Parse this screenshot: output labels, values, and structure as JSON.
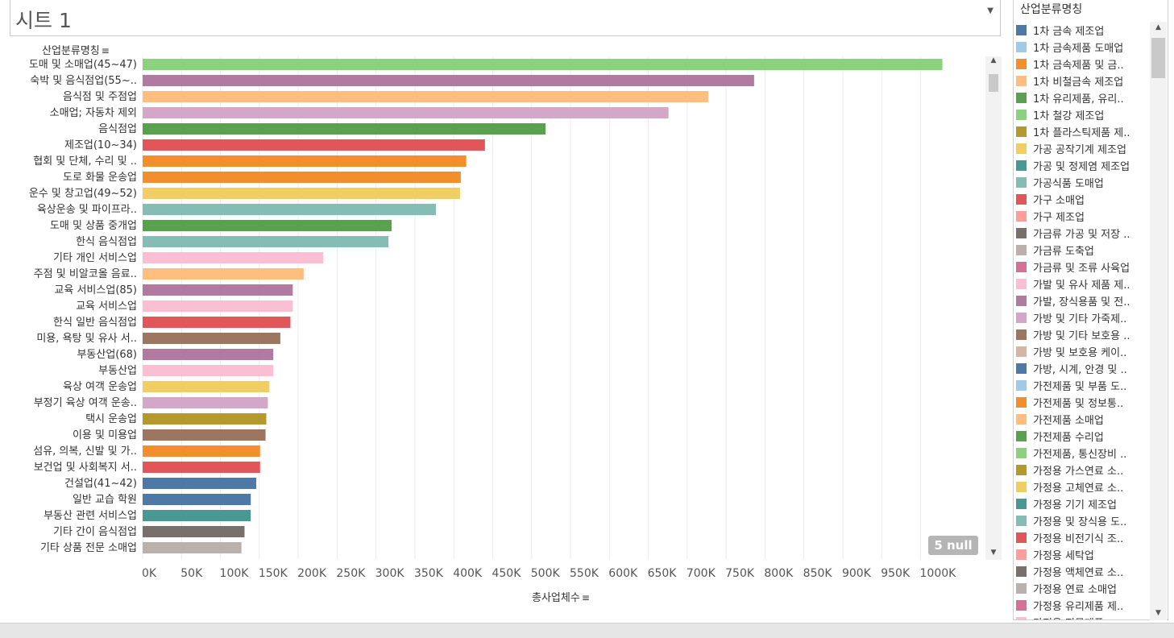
{
  "sheet": {
    "title": "시트 1",
    "dropdown_icon": "caret-down"
  },
  "legend": {
    "title": "산업분류명칭",
    "items": [
      {
        "label": "1차 금속 제조업",
        "color": "#4e79a7"
      },
      {
        "label": "1차 금속제품 도매업",
        "color": "#a0cbe8"
      },
      {
        "label": "1차 금속제품 및 금..",
        "color": "#f28e2b"
      },
      {
        "label": "1차 비철금속 제조업",
        "color": "#ffbe7d"
      },
      {
        "label": "1차 유리제품, 유리..",
        "color": "#59a14f"
      },
      {
        "label": "1차 철강 제조업",
        "color": "#8cd17d"
      },
      {
        "label": "1차 플라스틱제품 제..",
        "color": "#b6992d"
      },
      {
        "label": "가공 공작기계 제조업",
        "color": "#f1ce63"
      },
      {
        "label": "가공 및 정제염 제조업",
        "color": "#499894"
      },
      {
        "label": "가공식품 도매업",
        "color": "#86bcb6"
      },
      {
        "label": "가구 소매업",
        "color": "#e15759"
      },
      {
        "label": "가구 제조업",
        "color": "#ff9d9a"
      },
      {
        "label": "가금류 가공 및 저장 ..",
        "color": "#79706e"
      },
      {
        "label": "가금류 도축업",
        "color": "#bab0ac"
      },
      {
        "label": "가금류 및 조류 사육업",
        "color": "#d37295"
      },
      {
        "label": "가발 및 유사 제품 제..",
        "color": "#fabfd2"
      },
      {
        "label": "가발, 장식용품 및 전..",
        "color": "#b07aa1"
      },
      {
        "label": "가방 및 기타 가죽제..",
        "color": "#d4a6c8"
      },
      {
        "label": "가방 및 기타 보호용 ..",
        "color": "#9d7660"
      },
      {
        "label": "가방 및 보호용 케이..",
        "color": "#d7b5a6"
      },
      {
        "label": "가방, 시계, 안경 및 ..",
        "color": "#4e79a7"
      },
      {
        "label": "가전제품 및 부품 도..",
        "color": "#a0cbe8"
      },
      {
        "label": "가전제품 및 정보통..",
        "color": "#f28e2b"
      },
      {
        "label": "가전제품 소매업",
        "color": "#ffbe7d"
      },
      {
        "label": "가전제품 수리업",
        "color": "#59a14f"
      },
      {
        "label": "가전제품, 통신장비 ..",
        "color": "#8cd17d"
      },
      {
        "label": "가정용 가스연료 소..",
        "color": "#b6992d"
      },
      {
        "label": "가정용 고체연료 소..",
        "color": "#f1ce63"
      },
      {
        "label": "가정용 기기 제조업",
        "color": "#499894"
      },
      {
        "label": "가정용 및 장식용 도..",
        "color": "#86bcb6"
      },
      {
        "label": "가정용 비전기식 조..",
        "color": "#e15759"
      },
      {
        "label": "가정용 세탁업",
        "color": "#ff9d9a"
      },
      {
        "label": "가정용 액체연료 소..",
        "color": "#79706e"
      },
      {
        "label": "가정용 연료 소매업",
        "color": "#bab0ac"
      },
      {
        "label": "가정용 유리제품 제..",
        "color": "#d37295"
      },
      {
        "label": "가정용 직물제품..",
        "color": "#fabfd2"
      }
    ]
  },
  "chart_data": {
    "type": "bar",
    "orientation": "horizontal",
    "title": "시트 1",
    "row_header": "산업분류명칭",
    "xlabel": "총사업체수",
    "xlim": [
      0,
      1100000
    ],
    "xticks": [
      "0K",
      "50K",
      "100K",
      "150K",
      "200K",
      "250K",
      "300K",
      "350K",
      "400K",
      "450K",
      "500K",
      "550K",
      "600K",
      "650K",
      "700K",
      "750K",
      "800K",
      "850K",
      "900K",
      "950K",
      "1000K"
    ],
    "null_indicator": "5 null",
    "bars": [
      {
        "label": "도매 및 소매업(45~47)",
        "value": 1028000,
        "color": "#8cd17d"
      },
      {
        "label": "숙박 및 음식점업(55~..",
        "value": 786000,
        "color": "#b07aa1"
      },
      {
        "label": "음식점 및 주점업",
        "value": 727000,
        "color": "#ffbe7d"
      },
      {
        "label": "소매업; 자동차 제외",
        "value": 676000,
        "color": "#d4a6c8"
      },
      {
        "label": "음식점업",
        "value": 518000,
        "color": "#59a14f"
      },
      {
        "label": "제조업(10~34)",
        "value": 440000,
        "color": "#e15759"
      },
      {
        "label": "협회 및 단체, 수리 및 ..",
        "value": 416000,
        "color": "#f28e2b"
      },
      {
        "label": "도로 화물 운송업",
        "value": 409000,
        "color": "#f28e2b"
      },
      {
        "label": "운수 및 창고업(49~52)",
        "value": 408000,
        "color": "#f1ce63"
      },
      {
        "label": "육상운송 및 파이프라..",
        "value": 377000,
        "color": "#86bcb6"
      },
      {
        "label": "도매 및 상품 중개업",
        "value": 320000,
        "color": "#59a14f"
      },
      {
        "label": "한식 음식점업",
        "value": 316000,
        "color": "#86bcb6"
      },
      {
        "label": "기타 개인 서비스업",
        "value": 232000,
        "color": "#fabfd2"
      },
      {
        "label": "주점 및 비알코올 음료..",
        "value": 207000,
        "color": "#ffbe7d"
      },
      {
        "label": "교육 서비스업(85)",
        "value": 193000,
        "color": "#b07aa1"
      },
      {
        "label": "교육 서비스업",
        "value": 193000,
        "color": "#fabfd2"
      },
      {
        "label": "한식 일반 음식점업",
        "value": 190000,
        "color": "#e15759"
      },
      {
        "label": "미용, 욕탕 및 유사 서..",
        "value": 177000,
        "color": "#9d7660"
      },
      {
        "label": "부동산업(68)",
        "value": 168000,
        "color": "#b07aa1"
      },
      {
        "label": "부동산업",
        "value": 168000,
        "color": "#fabfd2"
      },
      {
        "label": "육상 여객 운송업",
        "value": 163000,
        "color": "#f1ce63"
      },
      {
        "label": "부정기 육상 여객 운송..",
        "value": 161000,
        "color": "#d4a6c8"
      },
      {
        "label": "택시 운송업",
        "value": 159000,
        "color": "#b6992d"
      },
      {
        "label": "이용 및 미용업",
        "value": 158000,
        "color": "#9d7660"
      },
      {
        "label": "섬유, 의복, 신발 및 가..",
        "value": 151000,
        "color": "#f28e2b"
      },
      {
        "label": "보건업 및 사회복지 서..",
        "value": 151000,
        "color": "#e15759"
      },
      {
        "label": "건설업(41~42)",
        "value": 146000,
        "color": "#4e79a7"
      },
      {
        "label": "일반 교습 학원",
        "value": 139000,
        "color": "#4e79a7"
      },
      {
        "label": "부동산 관련 서비스업",
        "value": 139000,
        "color": "#499894"
      },
      {
        "label": "기타 간이 음식점업",
        "value": 131000,
        "color": "#79706e"
      },
      {
        "label": "기타 상품 전문 소매업",
        "value": 127000,
        "color": "#bab0ac"
      }
    ]
  }
}
